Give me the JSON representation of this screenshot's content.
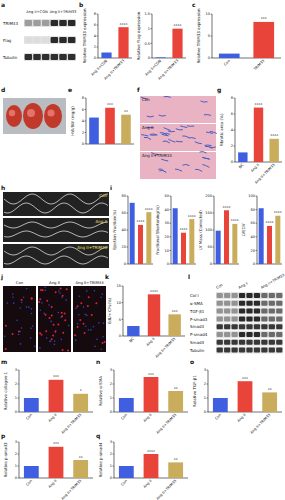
{
  "panel_labels": [
    "a",
    "b",
    "c",
    "d",
    "e",
    "f",
    "g",
    "h",
    "i",
    "j",
    "k",
    "l",
    "m",
    "n",
    "o",
    "p",
    "q"
  ],
  "blots": [
    {
      "lanes": [
        "Ang II+CON",
        "Ang II+TRIM33"
      ],
      "rows": [
        "TRIM33",
        "Flag",
        "Tubulin"
      ]
    },
    {
      "lanes": [
        "Con",
        "Ang II",
        "Ang II+TRIM33"
      ],
      "rows": [
        "Col Ⅰ",
        "α-SMA",
        "TGF-β1",
        "P-smad3",
        "Smad3",
        "P-smad4",
        "Smad4",
        "Tubulin"
      ]
    }
  ],
  "image_labels": {
    "f": [
      "Con",
      "Ang II",
      "Ang II+TRIM33"
    ],
    "h": [
      "Con",
      "Ang II",
      "Ang II+TRIM33"
    ],
    "j": [
      "Con",
      "Ang II",
      "Ang II+TRIM33"
    ]
  },
  "chart_data": [
    {
      "type": "bar",
      "ylabel": "Relative TRIM33 expression",
      "categories": [
        "Ang II+CON",
        "Ang II+TRIM33"
      ],
      "values": [
        1,
        5.6
      ],
      "colors": [
        "#3f5fe0",
        "#e8443a"
      ],
      "ylim": [
        0,
        8
      ],
      "yticks": [
        0,
        2,
        4,
        6,
        8
      ],
      "annotations": [
        "****"
      ]
    },
    {
      "type": "bar",
      "ylabel": "Relative Flag expression",
      "categories": [
        "Ang II+CON",
        "Ang II+TRIM33"
      ],
      "values": [
        0.02,
        1
      ],
      "colors": [
        "#3f5fe0",
        "#e8443a"
      ],
      "ylim": [
        0,
        1.5
      ],
      "yticks": [
        0,
        0.5,
        1,
        1.5
      ],
      "annotations": [
        "****"
      ]
    },
    {
      "type": "bar",
      "ylabel": "Relative TRIM33 expression",
      "categories": [
        "Con",
        "TRIM33"
      ],
      "values": [
        1,
        8.2
      ],
      "colors": [
        "#3f5fe0",
        "#e8443a"
      ],
      "ylim": [
        0,
        10
      ],
      "yticks": [
        0,
        5,
        10
      ],
      "annotations": [
        "***"
      ]
    },
    {
      "type": "bar",
      "ylabel": "HW/BW (mg/g)",
      "categories": [
        null,
        null,
        null
      ],
      "values": [
        4.6,
        6.3,
        5.1
      ],
      "colors": [
        "#3f5fe0",
        "#e8443a",
        "#c9ad5c"
      ],
      "ylim": [
        0,
        8
      ],
      "yticks": [
        0,
        2,
        4,
        6,
        8
      ],
      "annotations": [
        "***",
        "**"
      ]
    },
    {
      "type": "bar",
      "ylabel": "Fibrotic area (%)",
      "categories": [
        "NC",
        "Ang II",
        "Ang II+TRIM33"
      ],
      "values": [
        1.2,
        6.8,
        2.9
      ],
      "colors": [
        "#3f5fe0",
        "#e8443a",
        "#c9ad5c"
      ],
      "ylim": [
        0,
        8
      ],
      "yticks": [
        0,
        2,
        4,
        6,
        8
      ],
      "annotations": [
        "****",
        "****"
      ]
    },
    {
      "type": "bar",
      "ylabel": "Ejection Fraction(%)",
      "categories": [
        null,
        null,
        null
      ],
      "values": [
        72,
        46,
        61
      ],
      "colors": [
        "#3f5fe0",
        "#e8443a",
        "#c9ad5c"
      ],
      "ylim": [
        0,
        80
      ],
      "yticks": [
        0,
        20,
        40,
        60,
        80
      ],
      "annotations": [
        "****",
        "****"
      ]
    },
    {
      "type": "bar",
      "ylabel": "Fractional Shortening(%)",
      "categories": [
        null,
        null,
        null
      ],
      "values": [
        41,
        23,
        33
      ],
      "colors": [
        "#3f5fe0",
        "#e8443a",
        "#c9ad5c"
      ],
      "ylim": [
        0,
        50
      ],
      "yticks": [
        0,
        10,
        20,
        30,
        40,
        50
      ],
      "annotations": [
        "****",
        "****"
      ]
    },
    {
      "type": "bar",
      "ylabel": "LV Mass (Corrected)",
      "categories": [
        null,
        null,
        null
      ],
      "values": [
        98,
        158,
        118
      ],
      "colors": [
        "#3f5fe0",
        "#e8443a",
        "#c9ad5c"
      ],
      "ylim": [
        0,
        200
      ],
      "yticks": [
        0,
        50,
        100,
        150,
        200
      ],
      "annotations": [
        "****",
        "****"
      ]
    },
    {
      "type": "bar",
      "ylabel": "LVEDV",
      "categories": [
        null,
        null,
        null
      ],
      "values": [
        82,
        56,
        71
      ],
      "colors": [
        "#3f5fe0",
        "#e8443a",
        "#c9ad5c"
      ],
      "ylim": [
        0,
        100
      ],
      "yticks": [
        0,
        20,
        40,
        60,
        80,
        100
      ],
      "annotations": [
        "****",
        "****"
      ]
    },
    {
      "type": "bar",
      "ylabel": "EdU+ CFs(%)",
      "categories": [
        "NC",
        "Ang II",
        "Ang II+TRIM33"
      ],
      "values": [
        3,
        12.5,
        6.5
      ],
      "colors": [
        "#3f5fe0",
        "#e8443a",
        "#c9ad5c"
      ],
      "ylim": [
        0,
        15
      ],
      "yticks": [
        0,
        5,
        10,
        15
      ],
      "annotations": [
        "****",
        "***"
      ]
    },
    {
      "type": "bar",
      "ylabel": "Relative collagen-1",
      "categories": [
        "Con",
        "Ang II",
        "Ang II+TRIM33"
      ],
      "values": [
        1,
        2.3,
        1.3
      ],
      "colors": [
        "#3f5fe0",
        "#e8443a",
        "#c9ad5c"
      ],
      "ylim": [
        0,
        3
      ],
      "yticks": [
        0,
        1,
        2,
        3
      ],
      "annotations": [
        "***",
        "*"
      ]
    },
    {
      "type": "bar",
      "ylabel": "Relative α-SMA",
      "categories": [
        "Con",
        "Ang II",
        "Ang II+TRIM33"
      ],
      "values": [
        1,
        2.5,
        1.5
      ],
      "colors": [
        "#3f5fe0",
        "#e8443a",
        "#c9ad5c"
      ],
      "ylim": [
        0,
        3
      ],
      "yticks": [
        0,
        1,
        2,
        3
      ],
      "annotations": [
        "***",
        "**"
      ]
    },
    {
      "type": "bar",
      "ylabel": "Relative TGF-β1",
      "categories": [
        "Con",
        "Ang II",
        "Ang II+TRIM33"
      ],
      "values": [
        1,
        2.2,
        1.4
      ],
      "colors": [
        "#3f5fe0",
        "#e8443a",
        "#c9ad5c"
      ],
      "ylim": [
        0,
        3
      ],
      "yticks": [
        0,
        1,
        2,
        3
      ],
      "annotations": [
        "***",
        "**"
      ]
    },
    {
      "type": "bar",
      "ylabel": "Relative p-smad3",
      "categories": [
        "Con",
        "Ang II",
        "Ang II+TRIM33"
      ],
      "values": [
        1,
        2.6,
        1.5
      ],
      "colors": [
        "#3f5fe0",
        "#e8443a",
        "#c9ad5c"
      ],
      "ylim": [
        0,
        3
      ],
      "yticks": [
        0,
        1,
        2,
        3
      ],
      "annotations": [
        "***",
        "**"
      ]
    },
    {
      "type": "bar",
      "ylabel": "Relative p-smad4",
      "categories": [
        "Con",
        "Ang II",
        "Ang II+TRIM33"
      ],
      "values": [
        1,
        2.0,
        1.3
      ],
      "colors": [
        "#3f5fe0",
        "#e8443a",
        "#c9ad5c"
      ],
      "ylim": [
        0,
        3
      ],
      "yticks": [
        0,
        1,
        2,
        3
      ],
      "annotations": [
        "****",
        "**"
      ]
    }
  ]
}
